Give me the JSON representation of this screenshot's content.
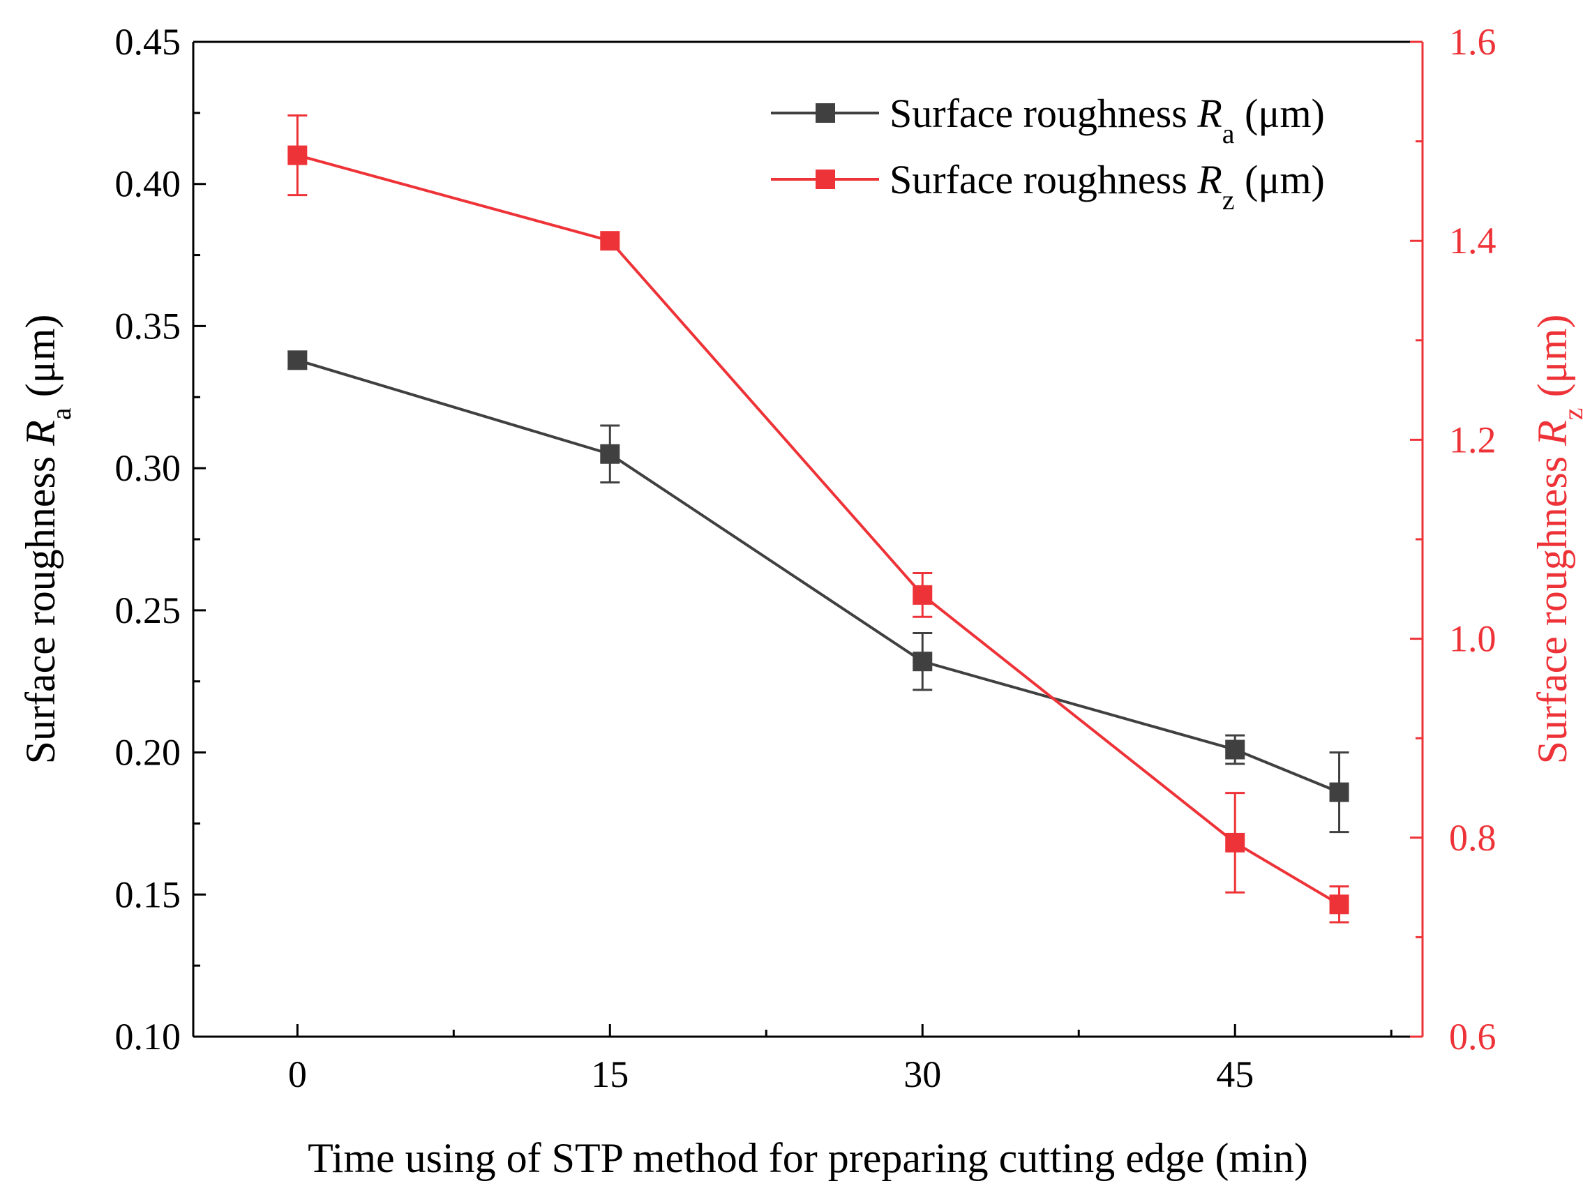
{
  "chart_data": {
    "type": "line",
    "xlabel": "Time using of STP method for preparing cutting edge (min)",
    "x_ticks": [
      "0",
      "15",
      "30",
      "45"
    ],
    "xlim": [
      -5,
      54
    ],
    "y_left": {
      "label_main": "Surface roughness ",
      "label_var": "R",
      "label_sub": "a",
      "label_unit": " (μm)",
      "range": [
        0.1,
        0.45
      ],
      "ticks": [
        "0.10",
        "0.15",
        "0.20",
        "0.25",
        "0.30",
        "0.35",
        "0.40",
        "0.45"
      ],
      "color": "#404040"
    },
    "y_right": {
      "label_main": "Surface roughness ",
      "label_var": "R",
      "label_sub": "z",
      "label_unit": " (μm)",
      "range": [
        0.6,
        1.6
      ],
      "ticks": [
        "0.6",
        "0.8",
        "1.0",
        "1.2",
        "1.4",
        "1.6"
      ],
      "color": "#EE3338"
    },
    "series": [
      {
        "legend_main": "Surface roughness ",
        "legend_var": "R",
        "legend_sub": "a",
        "legend_unit": " (μm)",
        "axis": "left",
        "color": "#404040",
        "x": [
          0,
          15,
          30,
          45,
          50
        ],
        "values": [
          0.338,
          0.305,
          0.232,
          0.201,
          0.186
        ],
        "errors": [
          0.003,
          0.01,
          0.01,
          0.005,
          0.014
        ]
      },
      {
        "legend_main": "Surface roughness ",
        "legend_var": "R",
        "legend_sub": "z",
        "legend_unit": " (μm)",
        "axis": "right",
        "color": "#EE3338",
        "x": [
          0,
          15,
          30,
          45,
          50
        ],
        "values": [
          1.486,
          1.4,
          1.044,
          0.795,
          0.733
        ],
        "errors": [
          0.04,
          0.0,
          0.022,
          0.05,
          0.018
        ]
      }
    ],
    "legend_position": "top-right",
    "grid": false
  }
}
